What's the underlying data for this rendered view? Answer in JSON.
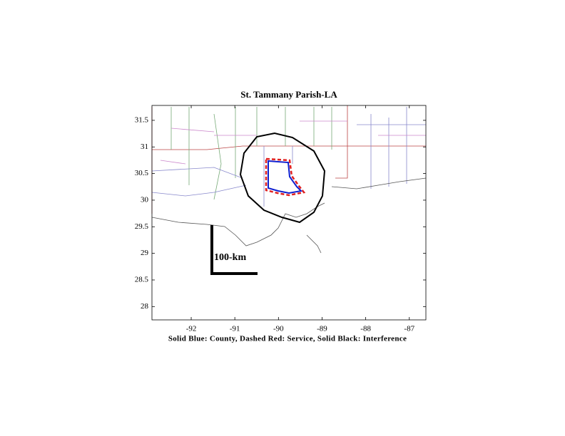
{
  "chart_data": {
    "type": "map",
    "title": "St. Tammany Parish-LA",
    "xlabel": "Solid Blue: County, Dashed Red: Service, Solid Black: Interference",
    "annotation": "100-km",
    "xlim": [
      -92.9,
      -86.62
    ],
    "xticks": [
      -92,
      -91,
      -90,
      -89,
      -88,
      -87
    ],
    "ylim": [
      27.75,
      31.78
    ],
    "yticks": [
      28,
      28.5,
      29,
      29.5,
      30,
      30.5,
      31,
      31.5
    ]
  }
}
